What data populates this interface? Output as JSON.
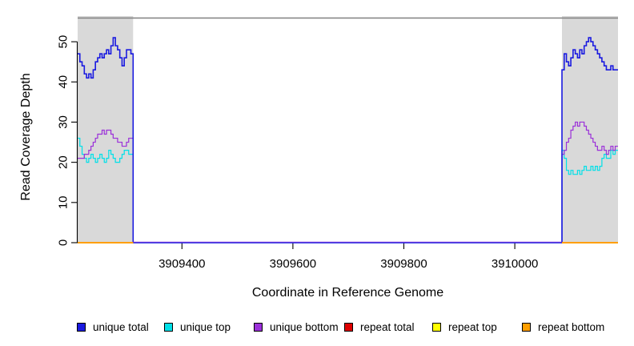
{
  "figure": {
    "x_axis_label": "Coordinate in Reference Genome",
    "y_axis_label": "Read Coverage Depth"
  },
  "colors": {
    "shaded_region": "#d9d9d9",
    "plot_top_border": "#808080",
    "axis": "#000000",
    "gap_baseline_blend": "#9b30d9"
  },
  "legend": {
    "items": [
      {
        "label": "unique total",
        "color": "#1a1ae0"
      },
      {
        "label": "unique top",
        "color": "#00e0e8"
      },
      {
        "label": "unique bottom",
        "color": "#9b30d9"
      },
      {
        "label": "repeat total",
        "color": "#de0000"
      },
      {
        "label": "repeat top",
        "color": "#ffff00"
      },
      {
        "label": "repeat bottom",
        "color": "#ff9f00"
      }
    ]
  },
  "chart_data": {
    "type": "line",
    "line_style": "step",
    "title": "",
    "xlabel": "Coordinate in Reference Genome",
    "ylabel": "Read Coverage Depth",
    "xlim": [
      3909212,
      3910186
    ],
    "ylim": [
      0,
      56
    ],
    "x_ticks": [
      3909400,
      3909600,
      3909800,
      3910000
    ],
    "y_ticks": [
      0,
      10,
      20,
      30,
      40,
      50
    ],
    "grid": false,
    "legend_position": "bottom",
    "shaded_regions": [
      {
        "x0": 3909212,
        "x1": 3909312
      },
      {
        "x0": 3910085,
        "x1": 3910186
      }
    ],
    "series": [
      {
        "name": "unique top",
        "color": "#00e0e8",
        "width": 1.2,
        "connect": true,
        "segments": [
          {
            "x_start": 3909212,
            "x_step": 4,
            "values": [
              26,
              24,
              22,
              21,
              20,
              21,
              22,
              21,
              20,
              21,
              22,
              21,
              20,
              21,
              23,
              22,
              21,
              20,
              20,
              21,
              22,
              23,
              23,
              22,
              22
            ],
            "hold_until": 3909312
          },
          {
            "x_start": 3909312,
            "x_step": 0,
            "values": [
              0
            ],
            "hold_until": 3910085
          },
          {
            "x_start": 3910085,
            "x_step": 4,
            "values": [
              23,
              21,
              18,
              17,
              18,
              17,
              17,
              18,
              17,
              18,
              19,
              18,
              18,
              19,
              18,
              19,
              18,
              19,
              21,
              22,
              21,
              21,
              23,
              22,
              23
            ],
            "hold_until": 3910186
          }
        ]
      },
      {
        "name": "unique bottom",
        "color": "#9b30d9",
        "width": 1.2,
        "connect": true,
        "segments": [
          {
            "x_start": 3909212,
            "x_step": 4,
            "values": [
              21,
              21,
              21,
              22,
              22,
              23,
              24,
              25,
              26,
              27,
              27,
              28,
              27,
              28,
              28,
              27,
              26,
              26,
              25,
              25,
              24,
              24,
              25,
              26,
              26
            ],
            "hold_until": 3909312
          },
          {
            "x_start": 3909312,
            "x_step": 0,
            "values": [
              0
            ],
            "hold_until": 3910085
          },
          {
            "x_start": 3910085,
            "x_step": 4,
            "values": [
              22,
              23,
              25,
              26,
              28,
              29,
              30,
              29,
              30,
              30,
              29,
              28,
              27,
              26,
              25,
              24,
              23,
              23,
              24,
              23,
              22,
              23,
              24,
              23,
              24
            ],
            "hold_until": 3910186
          }
        ]
      },
      {
        "name": "unique total",
        "color": "#1a1ae0",
        "width": 1.6,
        "connect": true,
        "segments": [
          {
            "x_start": 3909212,
            "x_step": 4,
            "values": [
              47,
              45,
              44,
              42,
              41,
              42,
              41,
              43,
              45,
              46,
              47,
              46,
              47,
              48,
              47,
              49,
              51,
              49,
              48,
              46,
              44,
              46,
              48,
              48,
              47
            ],
            "hold_until": 3909312
          },
          {
            "x_start": 3909312,
            "x_step": 0,
            "values": [
              0
            ],
            "hold_until": 3910085
          },
          {
            "x_start": 3910085,
            "x_step": 4,
            "values": [
              43,
              47,
              45,
              44,
              46,
              48,
              47,
              46,
              48,
              47,
              49,
              50,
              51,
              50,
              49,
              48,
              47,
              46,
              45,
              44,
              43,
              43,
              44,
              43,
              43
            ],
            "hold_until": 3910186
          }
        ]
      },
      {
        "name": "repeat total",
        "color": "#de0000",
        "width": 1.5,
        "connect": false,
        "segments": [
          {
            "x_start": 3909212,
            "x_step": 0,
            "values": [
              0
            ],
            "hold_until": 3909312
          },
          {
            "x_start": 3910085,
            "x_step": 0,
            "values": [
              0
            ],
            "hold_until": 3910186
          }
        ]
      },
      {
        "name": "repeat top",
        "color": "#ffff00",
        "width": 1.5,
        "connect": false,
        "segments": [
          {
            "x_start": 3909212,
            "x_step": 0,
            "values": [
              0
            ],
            "hold_until": 3909312
          },
          {
            "x_start": 3910085,
            "x_step": 0,
            "values": [
              0
            ],
            "hold_until": 3910186
          }
        ]
      },
      {
        "name": "repeat bottom",
        "color": "#ff9f00",
        "width": 2,
        "connect": false,
        "segments": [
          {
            "x_start": 3909212,
            "x_step": 0,
            "values": [
              0
            ],
            "hold_until": 3909312
          },
          {
            "x_start": 3910085,
            "x_step": 0,
            "values": [
              0
            ],
            "hold_until": 3910186
          }
        ]
      }
    ]
  }
}
